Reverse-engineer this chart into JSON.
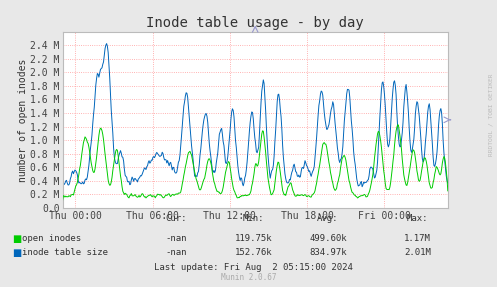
{
  "title": "Inode table usage - by day",
  "ylabel": "number of open inodes",
  "bg_color": "#e8e8e8",
  "plot_bg_color": "#ffffff",
  "grid_color": "#ff9999",
  "ylim": [
    0.0,
    2600000
  ],
  "yticks": [
    0.0,
    200000,
    400000,
    600000,
    800000,
    1000000,
    1200000,
    1400000,
    1600000,
    1800000,
    2000000,
    2200000,
    2400000
  ],
  "ytick_labels": [
    "0.0",
    "0.2 M",
    "0.4 M",
    "0.6 M",
    "0.8 M",
    "1.0 M",
    "1.2 M",
    "1.4 M",
    "1.6 M",
    "1.8 M",
    "2.0 M",
    "2.2 M",
    "2.4 M"
  ],
  "xtick_labels": [
    "Thu 00:00",
    "Thu 06:00",
    "Thu 12:00",
    "Thu 18:00",
    "Fri 00:00"
  ],
  "green_color": "#00cc00",
  "blue_color": "#0066bb",
  "title_fontsize": 10,
  "axis_fontsize": 7,
  "tick_fontsize": 7,
  "legend_labels": [
    "open inodes",
    "inode table size"
  ],
  "footer_text": "Munin 2.0.67",
  "stats_cur": [
    "-nan",
    "-nan"
  ],
  "stats_min": [
    "119.75k",
    "152.76k"
  ],
  "stats_avg": [
    "499.60k",
    "834.97k"
  ],
  "stats_max": [
    "1.17M",
    "2.01M"
  ],
  "last_update": "Last update: Fri Aug  2 05:15:00 2024",
  "rrdtool_text": "RRDTOOL / TOBI OETIKER",
  "n_points": 500,
  "arrow_color": "#9999cc"
}
